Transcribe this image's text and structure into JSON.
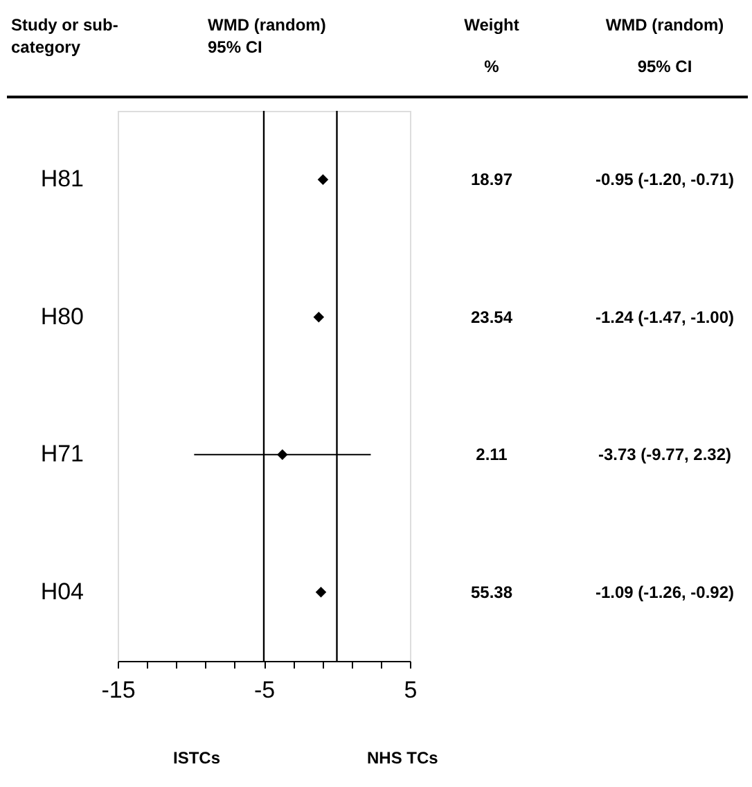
{
  "chart_data": {
    "type": "scatter",
    "orientation": "horizontal",
    "title": "WMD (random)\n95% CI",
    "ylabel": "Study or sub-\ncategory",
    "categories": [
      "H81",
      "H80",
      "H71",
      "H04"
    ],
    "values": [
      -0.95,
      -1.24,
      -3.73,
      -1.09
    ],
    "errors": [
      [
        -1.2,
        -0.71
      ],
      [
        -1.47,
        -1.0
      ],
      [
        -9.77,
        2.32
      ],
      [
        -1.26,
        -0.92
      ]
    ],
    "value_labels": [
      "-0.95 (-1.20, -0.71)",
      "-1.24 (-1.47, -1.00)",
      "-3.73 (-9.77, 2.32)",
      "-1.09 (-1.26, -0.92)"
    ],
    "color": "#000000",
    "marker": "diamond",
    "xlim": [
      -15,
      5
    ],
    "xticks": [
      -15,
      {
        "value": -13,
        "label": null
      },
      {
        "value": -11,
        "label": null
      },
      {
        "value": -9,
        "label": null
      },
      {
        "value": -7,
        "label": null
      },
      -5,
      {
        "value": -3,
        "label": null
      },
      {
        "value": -1,
        "label": null
      },
      {
        "value": 1,
        "label": null
      },
      {
        "value": 3,
        "label": null
      },
      5
    ],
    "ref_lines": [
      {
        "axis": "x",
        "value": -5,
        "color": "#000000"
      },
      {
        "axis": "x",
        "value": 0,
        "color": "#000000"
      }
    ],
    "annotations": [
      "Weight\n%",
      "WMD (random)\n95% CI",
      "ISTCs",
      "NHS TCs",
      "18.97",
      "23.54",
      "2.11",
      "55.38"
    ],
    "grid": false,
    "legend": false
  }
}
